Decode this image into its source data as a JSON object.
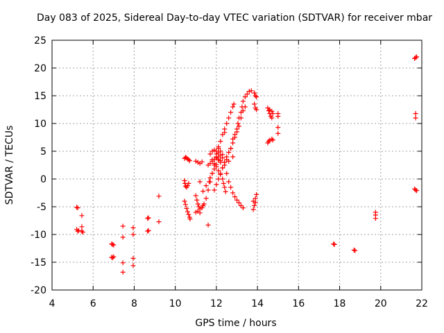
{
  "chart_data": {
    "type": "scatter",
    "title": "Day 083 of 2025, Sidereal Day-to-day VTEC variation (SDTVAR) for receiver mbar",
    "xlabel": "GPS time / hours",
    "ylabel": "SDTVAR / TECUs",
    "xlim": [
      4,
      22
    ],
    "ylim": [
      -20,
      25
    ],
    "xticks": [
      4,
      6,
      8,
      10,
      12,
      14,
      16,
      18,
      20,
      22
    ],
    "yticks": [
      -20,
      -15,
      -10,
      -5,
      0,
      5,
      10,
      15,
      20,
      25
    ],
    "grid": true,
    "marker": "+",
    "colors": {
      "series": "#ff0000",
      "axes": "#000000",
      "grid": "#a0a0a0",
      "background": "#ffffff"
    },
    "points": [
      [
        5.2,
        -5.1
      ],
      [
        5.25,
        -5.2
      ],
      [
        5.2,
        -9.1
      ],
      [
        5.3,
        -9.3
      ],
      [
        5.25,
        -9.4
      ],
      [
        5.45,
        -6.6
      ],
      [
        5.45,
        -8.6
      ],
      [
        5.45,
        -9.4
      ],
      [
        5.5,
        -9.6
      ],
      [
        6.9,
        -11.7
      ],
      [
        6.95,
        -11.8
      ],
      [
        7.0,
        -11.9
      ],
      [
        6.9,
        -14.1
      ],
      [
        6.95,
        -14.2
      ],
      [
        7.0,
        -14.0
      ],
      [
        7.45,
        -8.5
      ],
      [
        7.45,
        -10.5
      ],
      [
        7.45,
        -15.1
      ],
      [
        7.45,
        -16.8
      ],
      [
        7.95,
        -8.8
      ],
      [
        7.95,
        -10.0
      ],
      [
        7.95,
        -14.3
      ],
      [
        7.95,
        -15.6
      ],
      [
        8.65,
        -7.1
      ],
      [
        8.7,
        -7.0
      ],
      [
        8.65,
        -9.4
      ],
      [
        8.7,
        -9.3
      ],
      [
        9.2,
        -3.1
      ],
      [
        9.2,
        -7.7
      ],
      [
        10.45,
        3.7
      ],
      [
        10.5,
        3.9
      ],
      [
        10.55,
        3.8
      ],
      [
        10.6,
        3.6
      ],
      [
        10.65,
        3.5
      ],
      [
        10.7,
        3.3
      ],
      [
        10.45,
        -0.3
      ],
      [
        10.47,
        -0.8
      ],
      [
        10.5,
        -1.3
      ],
      [
        10.55,
        -1.5
      ],
      [
        10.6,
        -1.2
      ],
      [
        10.65,
        -0.8
      ],
      [
        10.45,
        -4.0
      ],
      [
        10.5,
        -4.6
      ],
      [
        10.55,
        -5.3
      ],
      [
        10.6,
        -5.9
      ],
      [
        10.65,
        -6.4
      ],
      [
        10.7,
        -6.9
      ],
      [
        10.72,
        -7.2
      ],
      [
        11.0,
        3.2
      ],
      [
        11.1,
        3.0
      ],
      [
        11.2,
        2.8
      ],
      [
        11.3,
        3.1
      ],
      [
        11.0,
        -3.0
      ],
      [
        11.05,
        -3.8
      ],
      [
        11.1,
        -4.5
      ],
      [
        11.15,
        -5.0
      ],
      [
        11.2,
        -5.4
      ],
      [
        11.3,
        -5.2
      ],
      [
        11.35,
        -4.8
      ],
      [
        11.0,
        -6.0
      ],
      [
        11.1,
        -5.8
      ],
      [
        11.2,
        -6.1
      ],
      [
        11.2,
        -0.5
      ],
      [
        11.35,
        -2.2
      ],
      [
        11.5,
        -1.2
      ],
      [
        11.6,
        -8.3
      ],
      [
        11.6,
        2.5
      ],
      [
        11.7,
        2.8
      ],
      [
        11.8,
        3.2
      ],
      [
        11.9,
        3.5
      ],
      [
        12.0,
        3.8
      ],
      [
        12.1,
        3.6
      ],
      [
        12.2,
        3.3
      ],
      [
        11.65,
        -0.5
      ],
      [
        11.7,
        0.2
      ],
      [
        11.8,
        1.0
      ],
      [
        11.9,
        1.8
      ],
      [
        12.0,
        2.6
      ],
      [
        12.1,
        3.4
      ],
      [
        12.4,
        8.4
      ],
      [
        12.7,
        5.5
      ],
      [
        12.8,
        4.0
      ],
      [
        11.4,
        -4.5
      ],
      [
        11.5,
        -3.5
      ],
      [
        11.6,
        -2.0
      ],
      [
        11.7,
        -0.5
      ],
      [
        11.8,
        1.0
      ],
      [
        11.9,
        2.5
      ],
      [
        12.0,
        4.0
      ],
      [
        12.1,
        5.5
      ],
      [
        12.2,
        6.8
      ],
      [
        12.3,
        8.0
      ],
      [
        12.4,
        9.0
      ],
      [
        12.5,
        10.0
      ],
      [
        12.6,
        11.0
      ],
      [
        12.7,
        12.0
      ],
      [
        12.8,
        13.0
      ],
      [
        12.85,
        13.5
      ],
      [
        11.9,
        -2.0
      ],
      [
        12.0,
        -1.0
      ],
      [
        12.1,
        0.0
      ],
      [
        12.2,
        1.0
      ],
      [
        12.3,
        2.0
      ],
      [
        12.4,
        3.0
      ],
      [
        12.5,
        4.0
      ],
      [
        12.6,
        4.8
      ],
      [
        12.7,
        5.5
      ],
      [
        12.8,
        6.5
      ],
      [
        12.9,
        7.5
      ],
      [
        13.0,
        8.5
      ],
      [
        13.1,
        9.5
      ],
      [
        13.2,
        11.0
      ],
      [
        13.3,
        12.3
      ],
      [
        13.4,
        13.0
      ],
      [
        12.8,
        7.2
      ],
      [
        12.9,
        8.0
      ],
      [
        13.0,
        9.0
      ],
      [
        13.05,
        10.0
      ],
      [
        13.1,
        11.0
      ],
      [
        13.2,
        12.0
      ],
      [
        13.25,
        13.0
      ],
      [
        13.3,
        14.0
      ],
      [
        13.4,
        14.8
      ],
      [
        13.5,
        15.3
      ],
      [
        13.6,
        15.8
      ],
      [
        13.7,
        15.9
      ],
      [
        11.7,
        4.5
      ],
      [
        11.8,
        5.0
      ],
      [
        11.9,
        5.2
      ],
      [
        12.0,
        5.0
      ],
      [
        12.1,
        4.7
      ],
      [
        12.2,
        4.3
      ],
      [
        12.3,
        3.8
      ],
      [
        12.4,
        2.5
      ],
      [
        12.5,
        1.0
      ],
      [
        12.6,
        -0.5
      ],
      [
        12.7,
        -1.5
      ],
      [
        12.8,
        -2.5
      ],
      [
        12.9,
        -3.2
      ],
      [
        13.0,
        -3.8
      ],
      [
        13.1,
        -4.3
      ],
      [
        13.2,
        -4.8
      ],
      [
        13.3,
        -5.2
      ],
      [
        12.1,
        4.0
      ],
      [
        12.2,
        3.0
      ],
      [
        12.3,
        2.0
      ],
      [
        12.4,
        3.0
      ],
      [
        12.5,
        3.5
      ],
      [
        12.6,
        3.2
      ],
      [
        11.8,
        3.5
      ],
      [
        11.9,
        2.8
      ],
      [
        12.0,
        2.2
      ],
      [
        12.1,
        1.5
      ],
      [
        12.2,
        0.8
      ],
      [
        12.3,
        0.0
      ],
      [
        12.35,
        -0.8
      ],
      [
        12.4,
        -1.5
      ],
      [
        12.45,
        -2.3
      ],
      [
        12.0,
        4.5
      ],
      [
        12.1,
        5.8
      ],
      [
        12.2,
        5.0
      ],
      [
        12.3,
        4.4
      ],
      [
        13.8,
        -4.0
      ],
      [
        13.85,
        -4.8
      ],
      [
        13.8,
        -5.5
      ],
      [
        13.9,
        -3.5
      ],
      [
        13.95,
        -2.8
      ],
      [
        13.9,
        -4.2
      ],
      [
        13.85,
        15.5
      ],
      [
        13.9,
        15.0
      ],
      [
        13.95,
        14.8
      ],
      [
        13.85,
        13.5
      ],
      [
        13.9,
        12.8
      ],
      [
        13.95,
        12.5
      ],
      [
        14.5,
        12.8
      ],
      [
        14.55,
        12.3
      ],
      [
        14.6,
        11.8
      ],
      [
        14.65,
        11.3
      ],
      [
        14.7,
        11.0
      ],
      [
        14.6,
        12.5
      ],
      [
        14.7,
        12.2
      ],
      [
        14.75,
        11.8
      ],
      [
        14.5,
        6.5
      ],
      [
        14.55,
        6.8
      ],
      [
        14.6,
        7.0
      ],
      [
        14.7,
        7.2
      ],
      [
        14.75,
        7.0
      ],
      [
        15.0,
        11.8
      ],
      [
        15.0,
        11.3
      ],
      [
        15.0,
        9.3
      ],
      [
        15.0,
        8.2
      ],
      [
        17.7,
        -11.7
      ],
      [
        17.75,
        -11.8
      ],
      [
        18.7,
        -12.8
      ],
      [
        18.75,
        -12.9
      ],
      [
        19.75,
        -6.0
      ],
      [
        19.75,
        -6.5
      ],
      [
        19.75,
        -7.1
      ],
      [
        21.65,
        21.7
      ],
      [
        21.7,
        21.9
      ],
      [
        21.75,
        22.0
      ],
      [
        21.7,
        11.8
      ],
      [
        21.7,
        11.0
      ],
      [
        21.65,
        -1.8
      ],
      [
        21.7,
        -2.0
      ],
      [
        21.75,
        -2.1
      ]
    ]
  }
}
